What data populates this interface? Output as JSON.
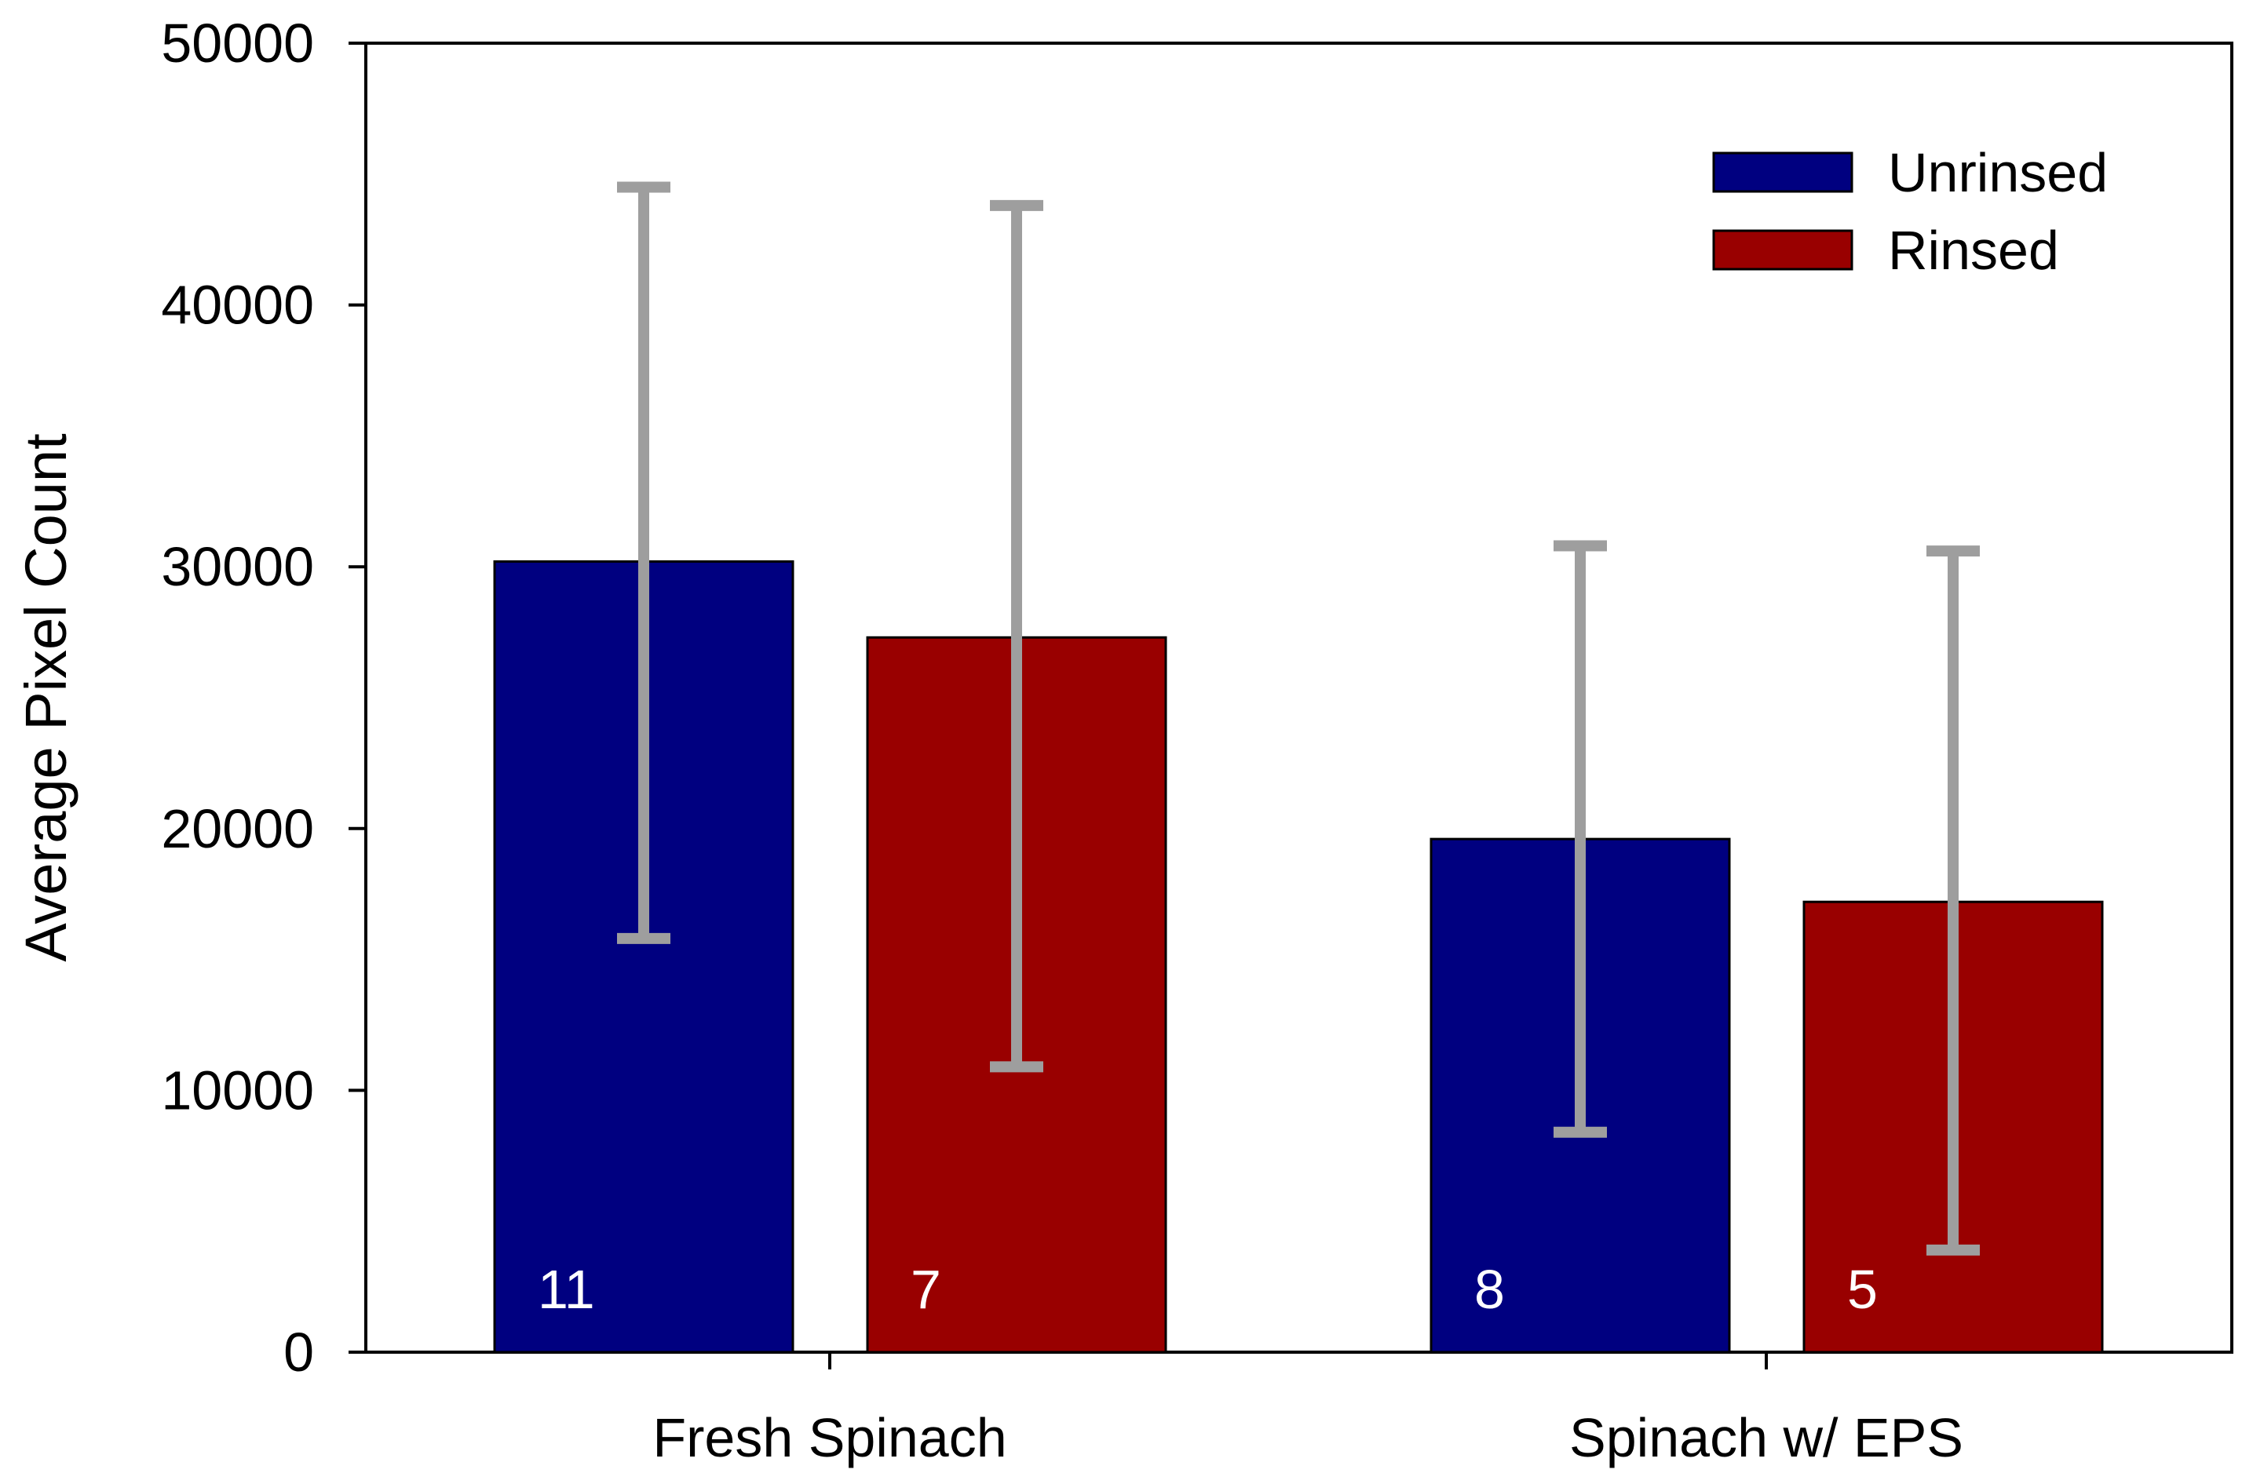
{
  "chart_data": {
    "type": "bar",
    "title": "",
    "xlabel": "",
    "ylabel": "Average Pixel Count",
    "ylim": [
      0,
      50000
    ],
    "yticks": [
      "0",
      "10000",
      "20000",
      "30000",
      "40000",
      "50000"
    ],
    "categories": [
      "Fresh Spinach",
      "Spinach w/ EPS"
    ],
    "series": [
      {
        "name": "Unrinsed",
        "color": "#000080",
        "values": [
          30200,
          19600
        ],
        "error_low": [
          15800,
          8400
        ],
        "error_high": [
          44500,
          30800
        ],
        "n_labels": [
          "11",
          "8"
        ]
      },
      {
        "name": "Rinsed",
        "color": "#990000",
        "values": [
          27300,
          17200
        ],
        "error_low": [
          10900,
          3900
        ],
        "error_high": [
          43800,
          30600
        ],
        "n_labels": [
          "7",
          "5"
        ]
      }
    ],
    "error_bar_color": "#9e9e9e",
    "legend": {
      "position": "top-right",
      "entries": [
        "Unrinsed",
        "Rinsed"
      ]
    },
    "grid": false
  }
}
